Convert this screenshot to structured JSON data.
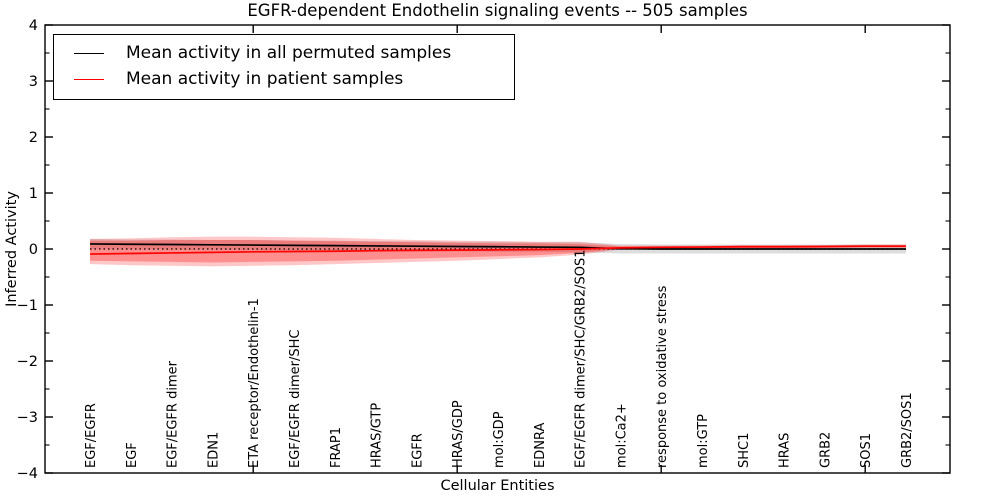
{
  "figure": {
    "title": "EGFR-dependent Endothelin signaling events -- 505 samples",
    "xlabel": "Cellular Entities",
    "ylabel": "Inferred Activity"
  },
  "legend": {
    "items": [
      {
        "label": "Mean activity in all permuted samples",
        "color": "#000000"
      },
      {
        "label": "Mean activity in patient samples",
        "color": "#ff0000"
      }
    ]
  },
  "chart_data": {
    "type": "line",
    "title": "EGFR-dependent Endothelin signaling events -- 505 samples",
    "xlabel": "Cellular Entities",
    "ylabel": "Inferred Activity",
    "ylim": [
      -4,
      4
    ],
    "yticks": [
      4,
      3,
      2,
      1,
      0,
      -1,
      -2,
      -3,
      -4
    ],
    "y_minor_tick_step": 0.5,
    "x_major_tick_indices": [
      4,
      9,
      14,
      19
    ],
    "grid": false,
    "legend_position": "upper left",
    "zero_reference_line": 0,
    "categories": [
      "EGF/EGFR",
      "EGF",
      "EGF/EGFR dimer",
      "EDN1",
      "ETA receptor/Endothelin-1",
      "EGF/EGFR dimer/SHC",
      "FRAP1",
      "HRAS/GTP",
      "EGFR",
      "HRAS/GDP",
      "mol:GDP",
      "EDNRA",
      "EGF/EGFR dimer/SHC/GRB2/SOS1",
      "mol:Ca2+",
      "response to oxidative stress",
      "mol:GTP",
      "SHC1",
      "HRAS",
      "GRB2",
      "SOS1",
      "GRB2/SOS1"
    ],
    "series": [
      {
        "name": "Mean activity in all permuted samples",
        "color": "#000000",
        "values": [
          0.09,
          0.085,
          0.08,
          0.075,
          0.07,
          0.065,
          0.06,
          0.055,
          0.05,
          0.045,
          0.04,
          0.035,
          0.03,
          0.005,
          0.0,
          0.0,
          0.0,
          0.0,
          0.0,
          0.0,
          0.0
        ]
      },
      {
        "name": "Mean activity in patient samples",
        "color": "#ff0000",
        "values": [
          -0.09,
          -0.08,
          -0.07,
          -0.06,
          -0.05,
          -0.045,
          -0.04,
          -0.03,
          -0.025,
          -0.02,
          -0.015,
          -0.01,
          0.0,
          0.02,
          0.03,
          0.035,
          0.04,
          0.04,
          0.045,
          0.05,
          0.05
        ]
      }
    ],
    "bands": [
      {
        "name": "permuted-samples-range",
        "color": "rgba(125,125,125,0.26)",
        "top": [
          0.18,
          0.17,
          0.17,
          0.16,
          0.16,
          0.15,
          0.15,
          0.14,
          0.14,
          0.13,
          0.13,
          0.12,
          0.12,
          0.09,
          0.08,
          0.08,
          0.08,
          0.08,
          0.08,
          0.08,
          0.08
        ],
        "bottom": [
          0.0,
          -0.005,
          -0.01,
          -0.01,
          -0.02,
          -0.02,
          -0.03,
          -0.03,
          -0.04,
          -0.04,
          -0.05,
          -0.05,
          -0.06,
          -0.08,
          -0.08,
          -0.08,
          -0.08,
          -0.08,
          -0.08,
          -0.08,
          -0.08
        ]
      },
      {
        "name": "patient-samples-range-outer",
        "color": "rgba(255,0,0,0.22)",
        "top": [
          0.18,
          0.19,
          0.21,
          0.22,
          0.22,
          0.21,
          0.2,
          0.18,
          0.16,
          0.15,
          0.14,
          0.13,
          0.13,
          0.06,
          0.06,
          0.06,
          0.07,
          0.07,
          0.07,
          0.08,
          0.08
        ],
        "bottom": [
          -0.27,
          -0.29,
          -0.3,
          -0.31,
          -0.3,
          -0.29,
          -0.27,
          -0.25,
          -0.23,
          -0.21,
          -0.18,
          -0.15,
          -0.1,
          -0.01,
          0.0,
          0.0,
          0.01,
          0.01,
          0.02,
          0.02,
          0.02
        ]
      },
      {
        "name": "patient-samples-range-inner",
        "color": "rgba(255,0,0,0.28)",
        "top": [
          0.15,
          0.15,
          0.16,
          0.16,
          0.16,
          0.15,
          0.14,
          0.13,
          0.12,
          0.11,
          0.1,
          0.1,
          0.09,
          0.05,
          0.05,
          0.05,
          0.06,
          0.06,
          0.06,
          0.07,
          0.07
        ],
        "bottom": [
          -0.21,
          -0.22,
          -0.23,
          -0.24,
          -0.23,
          -0.22,
          -0.21,
          -0.19,
          -0.17,
          -0.15,
          -0.13,
          -0.11,
          -0.07,
          0.0,
          0.01,
          0.01,
          0.02,
          0.02,
          0.02,
          0.03,
          0.03
        ]
      }
    ]
  }
}
